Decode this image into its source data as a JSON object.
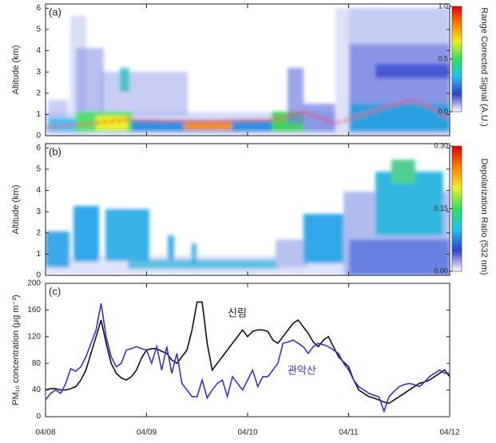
{
  "chart_data": [
    {
      "type": "heatmap",
      "panel_label": "(a)",
      "ylabel": "Altitude (km)",
      "ylim": [
        0,
        6.2
      ],
      "yticks": [
        0,
        1,
        2,
        3,
        4,
        5,
        6
      ],
      "colorbar_label": "Range Corrected Signal (A.U.)",
      "clim": [
        0,
        1
      ],
      "cticks": [
        {
          "value": 0,
          "label": "0.0"
        },
        0.5,
        {
          "value": 1,
          "label": "1.0"
        }
      ],
      "colors": [
        "#ffffff",
        "#3040d0",
        "#20c0f0",
        "#30e060",
        "#f0f020",
        "#ff8000",
        "#e00000"
      ]
    },
    {
      "type": "heatmap",
      "panel_label": "(b)",
      "ylabel": "Altitude (km)",
      "ylim": [
        0,
        6.2
      ],
      "yticks": [
        0,
        1,
        2,
        3,
        4,
        5,
        6
      ],
      "colorbar_label": "Depolarization Ratio (532 nm)",
      "clim": [
        0,
        0.3
      ],
      "cticks": [
        {
          "value": 0,
          "label": "0.00"
        },
        {
          "value": 0.15,
          "label": "0.15"
        },
        {
          "value": 0.3,
          "label": "0.30"
        }
      ],
      "colors": [
        "#ffffff",
        "#3040d0",
        "#20c0f0",
        "#30e060",
        "#f0f020",
        "#ff8000",
        "#e00000"
      ]
    },
    {
      "type": "line",
      "panel_label": "(c)",
      "ylabel": "PM₁₀ concentration (μg m⁻³)",
      "ylim": [
        0,
        200
      ],
      "yticks": [
        0,
        40,
        80,
        120,
        160,
        200
      ],
      "xlim": [
        0,
        4
      ],
      "xticks": [
        {
          "value": 0,
          "label": "04/08"
        },
        {
          "value": 1,
          "label": "04/09"
        },
        {
          "value": 2,
          "label": "04/10"
        },
        {
          "value": 3,
          "label": "04/11"
        },
        {
          "value": 4,
          "label": "04/12"
        }
      ],
      "x": [
        0,
        0.05,
        0.1,
        0.15,
        0.2,
        0.25,
        0.3,
        0.35,
        0.4,
        0.45,
        0.5,
        0.55,
        0.6,
        0.65,
        0.7,
        0.75,
        0.8,
        0.85,
        0.9,
        0.95,
        1,
        1.05,
        1.1,
        1.15,
        1.2,
        1.25,
        1.3,
        1.35,
        1.4,
        1.45,
        1.5,
        1.55,
        1.6,
        1.65,
        1.7,
        1.75,
        1.8,
        1.85,
        1.9,
        1.95,
        2,
        2.05,
        2.1,
        2.15,
        2.2,
        2.25,
        2.3,
        2.35,
        2.4,
        2.45,
        2.5,
        2.55,
        2.6,
        2.65,
        2.7,
        2.75,
        2.8,
        2.85,
        2.9,
        2.95,
        3,
        3.05,
        3.1,
        3.15,
        3.2,
        3.25,
        3.3,
        3.35,
        3.4,
        3.45,
        3.5,
        3.55,
        3.6,
        3.65,
        3.7,
        3.75,
        3.8,
        3.85,
        3.9,
        3.95,
        4
      ],
      "series": [
        {
          "name": "신림",
          "color": "#111111",
          "values": [
            40,
            42,
            42,
            40,
            40,
            42,
            45,
            55,
            70,
            95,
            120,
            145,
            110,
            80,
            65,
            58,
            55,
            60,
            70,
            88,
            100,
            102,
            102,
            98,
            95,
            85,
            80,
            90,
            100,
            130,
            172,
            172,
            110,
            70,
            80,
            90,
            100,
            110,
            120,
            130,
            120,
            128,
            130,
            130,
            128,
            115,
            110,
            120,
            130,
            140,
            145,
            135,
            125,
            112,
            105,
            115,
            120,
            105,
            90,
            82,
            75,
            55,
            40,
            35,
            30,
            28,
            25,
            22,
            20,
            25,
            30,
            35,
            40,
            45,
            50,
            52,
            55,
            60,
            65,
            70,
            60
          ]
        },
        {
          "name": "관악산",
          "color": "#3535c8",
          "values": [
            25,
            35,
            40,
            35,
            50,
            72,
            68,
            75,
            90,
            110,
            130,
            170,
            120,
            90,
            75,
            80,
            100,
            102,
            105,
            102,
            100,
            80,
            105,
            70,
            105,
            65,
            95,
            50,
            40,
            30,
            30,
            55,
            28,
            40,
            50,
            55,
            30,
            60,
            50,
            40,
            55,
            70,
            45,
            60,
            60,
            70,
            80,
            110,
            112,
            115,
            110,
            105,
            95,
            105,
            110,
            108,
            105,
            100,
            95,
            80,
            70,
            55,
            45,
            40,
            35,
            32,
            30,
            8,
            30,
            38,
            45,
            48,
            50,
            48,
            45,
            52,
            60,
            65,
            70,
            65,
            65
          ]
        }
      ]
    }
  ]
}
